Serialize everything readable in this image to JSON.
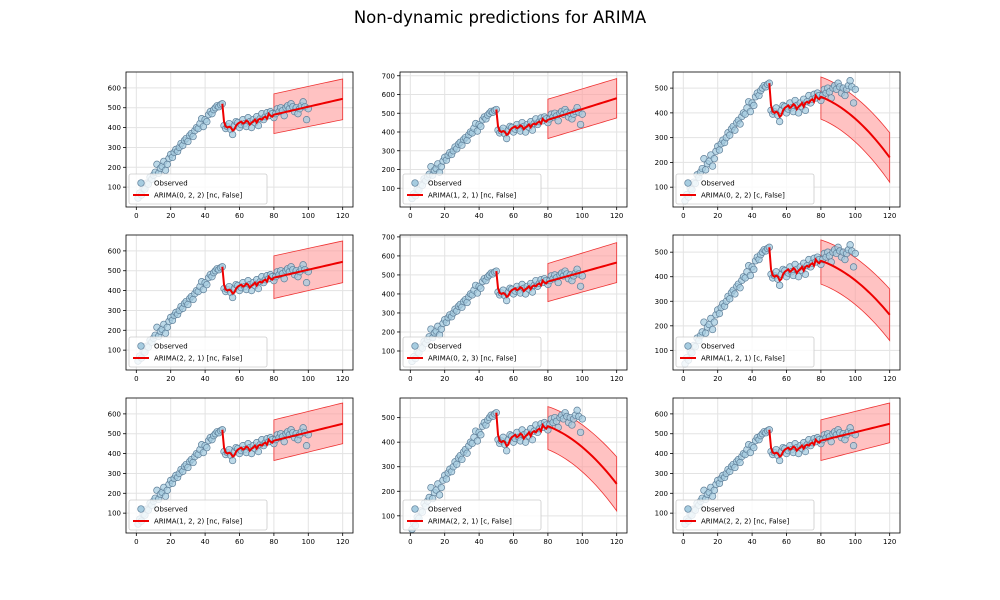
{
  "figure": {
    "title": "Non-dynamic predictions for ARIMA",
    "colors": {
      "observed_face": "#a6cce0",
      "observed_edge": "#5f7f99",
      "fit_line": "#ee0000",
      "band_fill": "#ff9999",
      "band_edge": "#ee3333",
      "grid": "#e3e3e3"
    }
  },
  "chart_data": [
    {
      "type": "line",
      "legend": {
        "observed": "Observed",
        "model": "ARIMA(0, 2, 2) [nc, False]"
      },
      "xlim": [
        -6,
        126
      ],
      "ylim": [
        0,
        680
      ],
      "xticks": [
        0,
        20,
        40,
        60,
        80,
        100,
        120
      ],
      "yticks": [
        100,
        200,
        300,
        400,
        500,
        600
      ],
      "forecast_end": 545,
      "band": {
        "lower_start": 370,
        "lower_end": 440,
        "upper_start": 570,
        "upper_end": 645
      },
      "legend_position": "lower-left",
      "grid": true
    },
    {
      "type": "line",
      "legend": {
        "observed": "Observed",
        "model": "ARIMA(1, 2, 1) [nc, False]"
      },
      "xlim": [
        -6,
        126
      ],
      "ylim": [
        0,
        720
      ],
      "xticks": [
        0,
        20,
        40,
        60,
        80,
        100,
        120
      ],
      "yticks": [
        100,
        200,
        300,
        400,
        500,
        600,
        700
      ],
      "forecast_end": 580,
      "band": {
        "lower_start": 365,
        "lower_end": 475,
        "upper_start": 575,
        "upper_end": 685
      },
      "legend_position": "lower-left",
      "grid": true
    },
    {
      "type": "line",
      "legend": {
        "observed": "Observed",
        "model": "ARIMA(0, 2, 2) [c, False]"
      },
      "xlim": [
        -6,
        126
      ],
      "ylim": [
        20,
        565
      ],
      "xticks": [
        0,
        20,
        40,
        60,
        80,
        100,
        120
      ],
      "yticks": [
        100,
        200,
        300,
        400,
        500
      ],
      "forecast_end": 220,
      "band": {
        "lower_start": 375,
        "lower_end": 120,
        "upper_start": 545,
        "upper_end": 320
      },
      "legend_position": "lower-left",
      "grid": true
    },
    {
      "type": "line",
      "legend": {
        "observed": "Observed",
        "model": "ARIMA(2, 2, 1) [nc, False]"
      },
      "xlim": [
        -6,
        126
      ],
      "ylim": [
        0,
        680
      ],
      "xticks": [
        0,
        20,
        40,
        60,
        80,
        100,
        120
      ],
      "yticks": [
        100,
        200,
        300,
        400,
        500,
        600
      ],
      "forecast_end": 545,
      "band": {
        "lower_start": 360,
        "lower_end": 440,
        "upper_start": 575,
        "upper_end": 650
      },
      "legend_position": "lower-left",
      "grid": true
    },
    {
      "type": "line",
      "legend": {
        "observed": "Observed",
        "model": "ARIMA(0, 2, 3) [nc, False]"
      },
      "xlim": [
        -6,
        126
      ],
      "ylim": [
        0,
        710
      ],
      "xticks": [
        0,
        20,
        40,
        60,
        80,
        100,
        120
      ],
      "yticks": [
        100,
        200,
        300,
        400,
        500,
        600,
        700
      ],
      "forecast_end": 565,
      "band": {
        "lower_start": 360,
        "lower_end": 460,
        "upper_start": 560,
        "upper_end": 670
      },
      "legend_position": "lower-left",
      "grid": true
    },
    {
      "type": "line",
      "legend": {
        "observed": "Observed",
        "model": "ARIMA(1, 2, 1) [c, False]"
      },
      "xlim": [
        -6,
        126
      ],
      "ylim": [
        20,
        570
      ],
      "xticks": [
        0,
        20,
        40,
        60,
        80,
        100,
        120
      ],
      "yticks": [
        100,
        200,
        300,
        400,
        500
      ],
      "forecast_end": 245,
      "band": {
        "lower_start": 370,
        "lower_end": 140,
        "upper_start": 550,
        "upper_end": 350
      },
      "legend_position": "lower-left",
      "grid": true
    },
    {
      "type": "line",
      "legend": {
        "observed": "Observed",
        "model": "ARIMA(1, 2, 2) [nc, False]"
      },
      "xlim": [
        -6,
        126
      ],
      "ylim": [
        0,
        680
      ],
      "xticks": [
        0,
        20,
        40,
        60,
        80,
        100,
        120
      ],
      "yticks": [
        100,
        200,
        300,
        400,
        500,
        600
      ],
      "forecast_end": 550,
      "band": {
        "lower_start": 365,
        "lower_end": 450,
        "upper_start": 570,
        "upper_end": 655
      },
      "legend_position": "lower-left",
      "grid": true
    },
    {
      "type": "line",
      "legend": {
        "observed": "Observed",
        "model": "ARIMA(2, 2, 1) [c, False]"
      },
      "xlim": [
        -6,
        126
      ],
      "ylim": [
        30,
        580
      ],
      "xticks": [
        0,
        20,
        40,
        60,
        80,
        100,
        120
      ],
      "yticks": [
        100,
        200,
        300,
        400,
        500
      ],
      "forecast_end": 230,
      "band": {
        "lower_start": 370,
        "lower_end": 120,
        "upper_start": 545,
        "upper_end": 340
      },
      "legend_position": "lower-left",
      "grid": true
    },
    {
      "type": "line",
      "legend": {
        "observed": "Observed",
        "model": "ARIMA(2, 2, 2) [nc, False]"
      },
      "xlim": [
        -6,
        126
      ],
      "ylim": [
        0,
        680
      ],
      "xticks": [
        0,
        20,
        40,
        60,
        80,
        100,
        120
      ],
      "yticks": [
        100,
        200,
        300,
        400,
        500,
        600
      ],
      "forecast_end": 550,
      "band": {
        "lower_start": 365,
        "lower_end": 455,
        "upper_start": 570,
        "upper_end": 655
      },
      "legend_position": "lower-left",
      "grid": true
    }
  ],
  "series_shared": {
    "observed_x": [
      1,
      2,
      3,
      4,
      5,
      6,
      7,
      8,
      9,
      10,
      11,
      12,
      13,
      14,
      15,
      16,
      17,
      18,
      19,
      20,
      21,
      22,
      23,
      24,
      25,
      26,
      27,
      28,
      29,
      30,
      31,
      32,
      33,
      34,
      35,
      36,
      37,
      38,
      39,
      40,
      41,
      42,
      43,
      44,
      45,
      46,
      47,
      48,
      49,
      50,
      51,
      52,
      53,
      54,
      55,
      56,
      57,
      58,
      59,
      60,
      61,
      62,
      63,
      64,
      65,
      66,
      67,
      68,
      69,
      70,
      71,
      72,
      73,
      74,
      75,
      76,
      77,
      78,
      79,
      80,
      81,
      82,
      83,
      84,
      85,
      86,
      87,
      88,
      89,
      90,
      91,
      92,
      93,
      94,
      95,
      96,
      97,
      98,
      99,
      100
    ],
    "observed_y": [
      45,
      70,
      60,
      95,
      90,
      120,
      115,
      150,
      140,
      160,
      175,
      215,
      170,
      195,
      205,
      230,
      185,
      215,
      245,
      265,
      250,
      275,
      290,
      280,
      300,
      320,
      310,
      335,
      345,
      330,
      360,
      370,
      355,
      385,
      400,
      395,
      420,
      445,
      405,
      440,
      430,
      465,
      480,
      470,
      490,
      500,
      510,
      505,
      515,
      520,
      410,
      395,
      405,
      420,
      390,
      365,
      410,
      430,
      425,
      400,
      415,
      440,
      420,
      405,
      450,
      430,
      400,
      440,
      425,
      455,
      410,
      445,
      470,
      440,
      455,
      475,
      460,
      480,
      470,
      450,
      470,
      495,
      480,
      500,
      485,
      460,
      500,
      510,
      495,
      520,
      505,
      480,
      500,
      470,
      495,
      510,
      530,
      505,
      440,
      495
    ],
    "fit_x": [
      50,
      51,
      52,
      53,
      54,
      55,
      56,
      57,
      58,
      59,
      60,
      61,
      62,
      63,
      64,
      65,
      66,
      67,
      68,
      69,
      70,
      71,
      72,
      73,
      74,
      75,
      76,
      77,
      78,
      79,
      80
    ],
    "fit_y": [
      520,
      430,
      405,
      400,
      405,
      400,
      385,
      390,
      410,
      420,
      425,
      430,
      420,
      425,
      435,
      430,
      415,
      425,
      430,
      440,
      425,
      440,
      445,
      440,
      450,
      455,
      445,
      470,
      460,
      455,
      465
    ]
  }
}
